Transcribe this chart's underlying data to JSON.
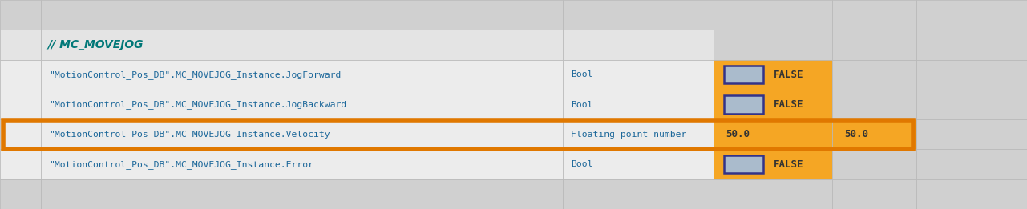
{
  "fig_width": 12.81,
  "fig_height": 2.61,
  "dpi": 100,
  "bg_color": "#d8d8d8",
  "rows": [
    {
      "label": "",
      "type": "",
      "value": "",
      "value2": "",
      "highlighted": false,
      "is_header": false
    },
    {
      "label": "// MC_MOVEJOG",
      "type": "",
      "value": "",
      "value2": "",
      "highlighted": false,
      "is_header": true
    },
    {
      "label": "\"MotionControl_Pos_DB\".MC_MOVEJOG_Instance.JogForward",
      "type": "Bool",
      "value": "FALSE",
      "value2": "",
      "highlighted": false,
      "is_header": false
    },
    {
      "label": "\"MotionControl_Pos_DB\".MC_MOVEJOG_Instance.JogBackward",
      "type": "Bool",
      "value": "FALSE",
      "value2": "",
      "highlighted": false,
      "is_header": false
    },
    {
      "label": "\"MotionControl_Pos_DB\".MC_MOVEJOG_Instance.Velocity",
      "type": "Floating-point number",
      "value": "50.0",
      "value2": "50.0",
      "highlighted": true,
      "is_header": false
    },
    {
      "label": "\"MotionControl_Pos_DB\".MC_MOVEJOG_Instance.Error",
      "type": "Bool",
      "value": "FALSE",
      "value2": "",
      "highlighted": false,
      "is_header": false
    },
    {
      "label": "",
      "type": "",
      "value": "",
      "value2": "",
      "highlighted": false,
      "is_header": false
    }
  ],
  "c0": 0.0,
  "c1": 0.04,
  "c2": 0.548,
  "c3": 0.695,
  "c4": 0.81,
  "c5": 0.892,
  "c6": 1.0,
  "orange_bg": "#f5a624",
  "header_color": "#007777",
  "label_color": "#1a6699",
  "value_color": "#333333",
  "grid_color": "#b8b8b8",
  "checkbox_border": "#333388",
  "checkbox_fill": "#aabbcc",
  "highlight_border_color": "#e07800",
  "row_bg_data": "#ececec",
  "row_bg_empty": "#d0d0d0",
  "row_bg_header": "#e4e4e4"
}
